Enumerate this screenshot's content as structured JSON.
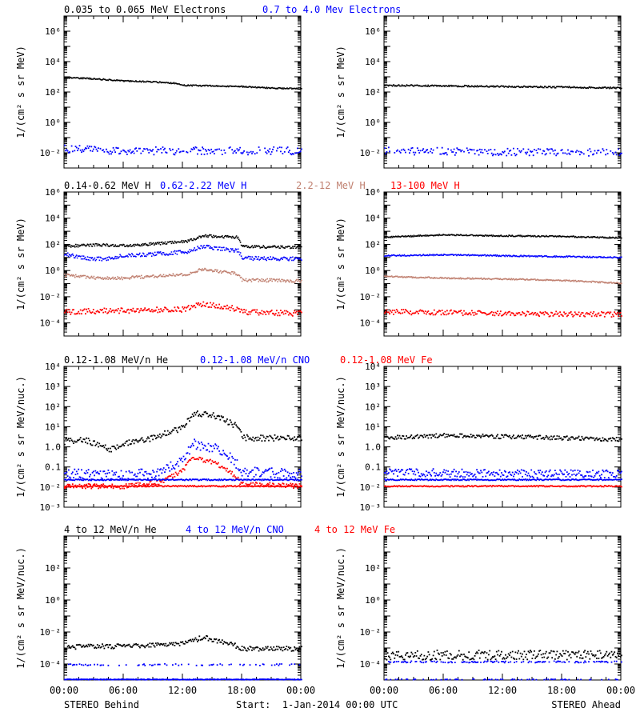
{
  "colors": {
    "black": "#000000",
    "blue": "#0000ff",
    "tan": "#c08070",
    "red": "#ff0000"
  },
  "x_axis": {
    "range_hours": [
      0,
      24
    ],
    "tick_hours": [
      0,
      6,
      12,
      18,
      24
    ],
    "tick_labels": [
      "00:00",
      "06:00",
      "12:00",
      "18:00",
      "00:00"
    ]
  },
  "footer": {
    "left": "STEREO Behind",
    "center": "Start:  1-Jan-2014 00:00 UTC",
    "right": "STEREO Ahead"
  },
  "chart_data": [
    {
      "type": "scatter",
      "row": 1,
      "scale": "log",
      "ylabel": "1/(cm² s sr MeV)",
      "ylim_exp": [
        -3,
        7
      ],
      "tick_exps": [
        -2,
        0,
        2,
        4,
        6
      ],
      "labels": [
        {
          "text": "0.035 to 0.065 MeV Electrons",
          "color": "black"
        },
        {
          "text": "0.7 to 4.0 Mev Electrons",
          "color": "blue"
        }
      ],
      "behind": [
        {
          "name": "0.035 to 0.065 MeV Electrons",
          "color": "black",
          "points": [
            [
              0,
              1000
            ],
            [
              3,
              800
            ],
            [
              6,
              600
            ],
            [
              9,
              500
            ],
            [
              11.5,
              400
            ],
            [
              12,
              300
            ],
            [
              15,
              280
            ],
            [
              18,
              250
            ],
            [
              21,
              200
            ],
            [
              24,
              180
            ]
          ],
          "scatter": 0.04,
          "density": 1,
          "mode": "line"
        },
        {
          "name": "0.7 to 4.0 Mev Electrons",
          "color": "blue",
          "points": [
            [
              0,
              0.02
            ],
            [
              6,
              0.015
            ],
            [
              12,
              0.015
            ],
            [
              18,
              0.015
            ],
            [
              24,
              0.015
            ]
          ],
          "scatter": 0.25,
          "density": 0.8,
          "mode": "dots"
        }
      ],
      "ahead": [
        {
          "name": "0.035 to 0.065 MeV Electrons",
          "color": "black",
          "points": [
            [
              0,
              300
            ],
            [
              6,
              280
            ],
            [
              12,
              250
            ],
            [
              18,
              230
            ],
            [
              24,
              200
            ]
          ],
          "scatter": 0.05,
          "density": 1,
          "mode": "line"
        },
        {
          "name": "0.7 to 4.0 Mev Electrons",
          "color": "blue",
          "points": [
            [
              0,
              0.015
            ],
            [
              12,
              0.013
            ],
            [
              24,
              0.012
            ]
          ],
          "scatter": 0.25,
          "density": 0.8,
          "mode": "dots"
        }
      ]
    },
    {
      "type": "scatter",
      "row": 2,
      "scale": "log",
      "ylabel": "1/(cm² s sr MeV)",
      "ylim_exp": [
        -5,
        6
      ],
      "tick_exps": [
        -4,
        -2,
        0,
        2,
        4,
        6
      ],
      "labels": [
        {
          "text": "0.14-0.62 MeV H",
          "color": "black"
        },
        {
          "text": "0.62-2.22 MeV H",
          "color": "blue"
        },
        {
          "text": "2.2-12 MeV H",
          "color": "tan"
        },
        {
          "text": "13-100 MeV H",
          "color": "red"
        }
      ],
      "behind": [
        {
          "name": "0.14-0.62 MeV H",
          "color": "black",
          "points": [
            [
              0,
              80
            ],
            [
              3,
              100
            ],
            [
              6,
              90
            ],
            [
              9,
              120
            ],
            [
              12.5,
              200
            ],
            [
              14,
              500
            ],
            [
              17,
              400
            ],
            [
              17.6,
              400
            ],
            [
              18,
              80
            ],
            [
              21,
              70
            ],
            [
              24,
              70
            ]
          ],
          "scatter": 0.1,
          "density": 1,
          "mode": "line"
        },
        {
          "name": "0.62-2.22 MeV H",
          "color": "blue",
          "points": [
            [
              0,
              20
            ],
            [
              2,
              10
            ],
            [
              4,
              8
            ],
            [
              6,
              15
            ],
            [
              9,
              20
            ],
            [
              12.5,
              30
            ],
            [
              14,
              80
            ],
            [
              17,
              40
            ],
            [
              17.6,
              40
            ],
            [
              18,
              10
            ],
            [
              21,
              9
            ],
            [
              24,
              9
            ]
          ],
          "scatter": 0.15,
          "density": 1,
          "mode": "line"
        },
        {
          "name": "2.2-12 MeV H",
          "color": "tan",
          "points": [
            [
              0,
              0.5
            ],
            [
              3,
              0.3
            ],
            [
              6,
              0.3
            ],
            [
              9,
              0.4
            ],
            [
              12.5,
              0.6
            ],
            [
              14,
              1.5
            ],
            [
              17,
              0.7
            ],
            [
              17.6,
              0.6
            ],
            [
              18,
              0.2
            ],
            [
              21,
              0.2
            ],
            [
              24,
              0.18
            ]
          ],
          "scatter": 0.12,
          "density": 1,
          "mode": "line"
        },
        {
          "name": "13-100 MeV H",
          "color": "red",
          "points": [
            [
              0,
              0.0008
            ],
            [
              6,
              0.001
            ],
            [
              12,
              0.0012
            ],
            [
              14,
              0.003
            ],
            [
              17,
              0.0015
            ],
            [
              18,
              0.0008
            ],
            [
              24,
              0.0006
            ]
          ],
          "scatter": 0.2,
          "density": 1,
          "mode": "dots"
        }
      ],
      "ahead": [
        {
          "name": "0.14-0.62 MeV H",
          "color": "black",
          "points": [
            [
              0,
              400
            ],
            [
              6,
              600
            ],
            [
              12,
              500
            ],
            [
              18,
              450
            ],
            [
              24,
              350
            ]
          ],
          "scatter": 0.05,
          "density": 1,
          "mode": "line"
        },
        {
          "name": "0.62-2.22 MeV H",
          "color": "blue",
          "points": [
            [
              0,
              15
            ],
            [
              6,
              18
            ],
            [
              12,
              15
            ],
            [
              18,
              13
            ],
            [
              24,
              11
            ]
          ],
          "scatter": 0.05,
          "density": 1,
          "mode": "line"
        },
        {
          "name": "2.2-12 MeV H",
          "color": "tan",
          "points": [
            [
              0,
              0.4
            ],
            [
              6,
              0.3
            ],
            [
              12,
              0.25
            ],
            [
              18,
              0.2
            ],
            [
              24,
              0.12
            ]
          ],
          "scatter": 0.05,
          "density": 1,
          "mode": "line"
        },
        {
          "name": "13-100 MeV H",
          "color": "red",
          "points": [
            [
              0,
              0.0008
            ],
            [
              12,
              0.0006
            ],
            [
              24,
              0.0005
            ]
          ],
          "scatter": 0.2,
          "density": 1,
          "mode": "dots"
        }
      ]
    },
    {
      "type": "scatter",
      "row": 3,
      "scale": "log",
      "ylabel": "1/(cm² s sr MeV/nuc.)",
      "ylim_exp": [
        -3,
        4
      ],
      "tick_exps": [
        -3,
        -2,
        -1,
        0,
        1,
        2,
        3,
        4
      ],
      "tick_labels": [
        "10⁻³",
        "10⁻²",
        "0.1",
        "1.0",
        "10¹",
        "10²",
        "10³",
        "10⁴"
      ],
      "labels": [
        {
          "text": "0.12-1.08 MeV/n He",
          "color": "black"
        },
        {
          "text": "0.12-1.08 MeV/n CNO",
          "color": "blue"
        },
        {
          "text": "0.12-1.08 MeV Fe",
          "color": "red"
        }
      ],
      "behind": [
        {
          "name": "0.12-1.08 MeV/n He",
          "color": "black",
          "points": [
            [
              0,
              2
            ],
            [
              2,
              2.5
            ],
            [
              4,
              1
            ],
            [
              5,
              0.8
            ],
            [
              6,
              1.5
            ],
            [
              9,
              3
            ],
            [
              12,
              10
            ],
            [
              13,
              50
            ],
            [
              15,
              40
            ],
            [
              17,
              15
            ],
            [
              17.6,
              10
            ],
            [
              18,
              3
            ],
            [
              21,
              3
            ],
            [
              24,
              3
            ]
          ],
          "scatter": 0.15,
          "density": 1,
          "mode": "dots"
        },
        {
          "name": "0.12-1.08 MeV/n CNO",
          "color": "blue",
          "points": [
            [
              0,
              0.05
            ],
            [
              6,
              0.04
            ],
            [
              10,
              0.06
            ],
            [
              12,
              0.3
            ],
            [
              13,
              1.5
            ],
            [
              15,
              1
            ],
            [
              17,
              0.3
            ],
            [
              18,
              0.06
            ],
            [
              24,
              0.05
            ]
          ],
          "scatter": 0.25,
          "density": 1,
          "mode": "dots"
        },
        {
          "name": "0.12-1.08 MeV Fe",
          "color": "red",
          "points": [
            [
              0,
              0.012
            ],
            [
              6,
              0.012
            ],
            [
              10,
              0.02
            ],
            [
              12,
              0.08
            ],
            [
              13,
              0.3
            ],
            [
              15,
              0.2
            ],
            [
              17,
              0.05
            ],
            [
              18,
              0.015
            ],
            [
              24,
              0.012
            ]
          ],
          "scatter": 0.12,
          "density": 1,
          "mode": "dots"
        },
        {
          "name": "0.12-1.08 MeV/n CNO baseline",
          "color": "blue",
          "points": [
            [
              0,
              0.025
            ],
            [
              24,
              0.025
            ]
          ],
          "scatter": 0.03,
          "density": 1,
          "mode": "dots"
        },
        {
          "name": "0.12-1.08 MeV Fe baseline",
          "color": "red",
          "points": [
            [
              0,
              0.012
            ],
            [
              24,
              0.012
            ]
          ],
          "scatter": 0.03,
          "density": 1,
          "mode": "dots"
        }
      ],
      "ahead": [
        {
          "name": "0.12-1.08 MeV/n He",
          "color": "black",
          "points": [
            [
              0,
              3
            ],
            [
              6,
              4
            ],
            [
              12,
              3.5
            ],
            [
              18,
              3
            ],
            [
              24,
              2.5
            ]
          ],
          "scatter": 0.1,
          "density": 1,
          "mode": "dots"
        },
        {
          "name": "0.12-1.08 MeV/n CNO",
          "color": "blue",
          "points": [
            [
              0,
              0.06
            ],
            [
              12,
              0.05
            ],
            [
              24,
              0.05
            ]
          ],
          "scatter": 0.2,
          "density": 1,
          "mode": "dots"
        },
        {
          "name": "0.12-1.08 MeV/n CNO baseline",
          "color": "blue",
          "points": [
            [
              0,
              0.025
            ],
            [
              24,
              0.025
            ]
          ],
          "scatter": 0.03,
          "density": 1,
          "mode": "dots"
        },
        {
          "name": "0.12-1.08 MeV Fe",
          "color": "red",
          "points": [
            [
              0,
              0.012
            ],
            [
              24,
              0.012
            ]
          ],
          "scatter": 0.03,
          "density": 1,
          "mode": "dots"
        }
      ]
    },
    {
      "type": "scatter",
      "row": 4,
      "scale": "log",
      "ylabel": "1/(cm² s sr MeV/nuc.)",
      "ylim_exp": [
        -5,
        4
      ],
      "tick_exps": [
        -4,
        -2,
        0,
        2
      ],
      "labels": [
        {
          "text": "4 to 12 MeV/n He",
          "color": "black"
        },
        {
          "text": "4 to 12 MeV/n CNO",
          "color": "blue"
        },
        {
          "text": "4 to 12 MeV Fe",
          "color": "red"
        }
      ],
      "behind": [
        {
          "name": "4 to 12 MeV/n He",
          "color": "black",
          "points": [
            [
              0,
              0.0012
            ],
            [
              6,
              0.0015
            ],
            [
              12,
              0.002
            ],
            [
              14,
              0.005
            ],
            [
              17,
              0.002
            ],
            [
              18,
              0.001
            ],
            [
              24,
              0.001
            ]
          ],
          "scatter": 0.15,
          "density": 1,
          "mode": "dots"
        },
        {
          "name": "4 to 12 MeV/n CNO",
          "color": "blue",
          "points": [
            [
              0,
              0.0001
            ],
            [
              24,
              0.0001
            ]
          ],
          "scatter": 0.05,
          "density": 0.3,
          "mode": "dots"
        },
        {
          "name": "4 to 12 MeV/n CNO floor",
          "color": "blue",
          "points": [
            [
              0,
              1.2e-05
            ],
            [
              24,
              1.2e-05
            ]
          ],
          "scatter": 0.02,
          "density": 1,
          "mode": "dots"
        }
      ],
      "ahead": [
        {
          "name": "4 to 12 MeV/n He",
          "color": "black",
          "points": [
            [
              0,
              0.0004
            ],
            [
              12,
              0.0004
            ],
            [
              24,
              0.0004
            ]
          ],
          "scatter": 0.3,
          "density": 1,
          "mode": "dots"
        },
        {
          "name": "4 to 12 MeV/n CNO",
          "color": "blue",
          "points": [
            [
              0,
              0.00015
            ],
            [
              24,
              0.00015
            ]
          ],
          "scatter": 0.05,
          "density": 0.5,
          "mode": "dots"
        },
        {
          "name": "4 to 12 MeV/n CNO floor",
          "color": "blue",
          "points": [
            [
              0,
              1.2e-05
            ],
            [
              24,
              1.2e-05
            ]
          ],
          "scatter": 0.02,
          "density": 0.3,
          "mode": "dots"
        }
      ]
    }
  ]
}
